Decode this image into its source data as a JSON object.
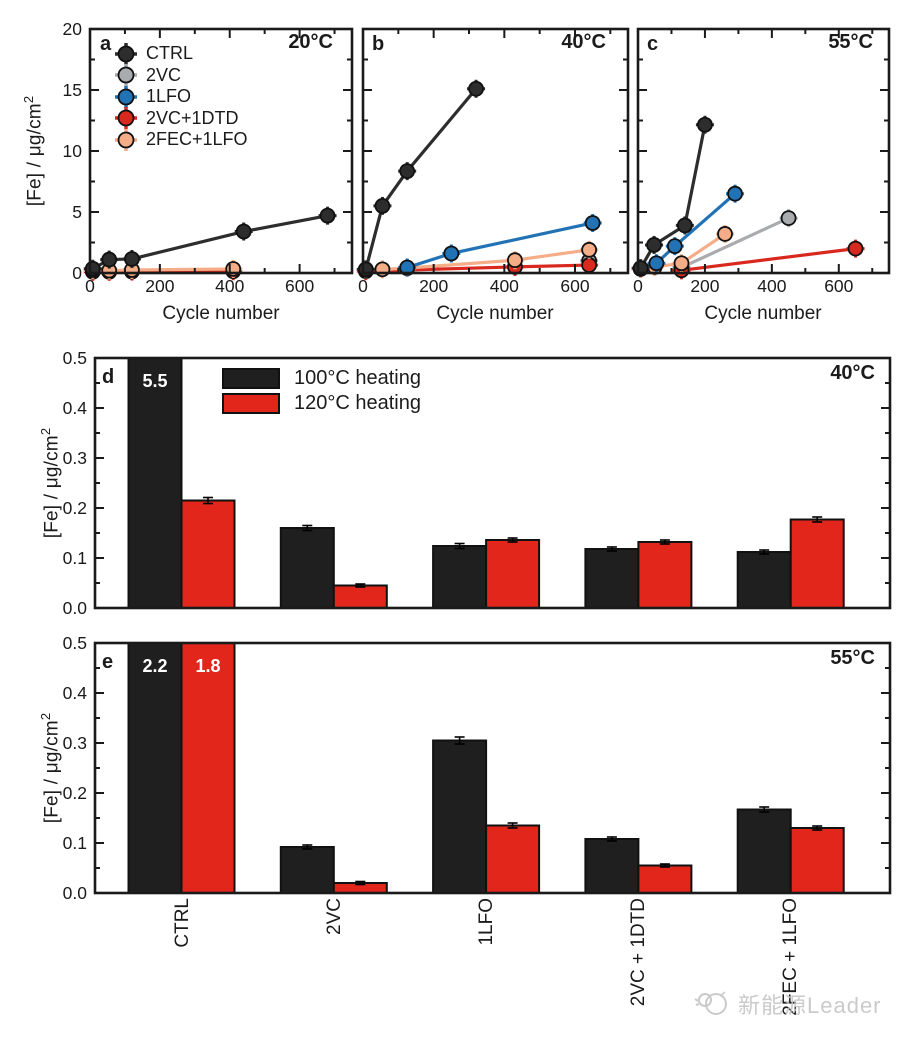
{
  "ui": {
    "ylabel_main": "[Fe] / μg/cm",
    "ylabel_sup": "2",
    "xlabel_cycles": "Cycle number"
  },
  "line_legend": [
    {
      "key": "ctrl",
      "label": "CTRL",
      "color": "#2D2D2D"
    },
    {
      "key": "2vc",
      "label": "2VC",
      "color": "#A9ABAE"
    },
    {
      "key": "1lfo",
      "label": "1LFO",
      "color": "#2173B5"
    },
    {
      "key": "2vc1dtd",
      "label": "2VC+1DTD",
      "color": "#D9291F"
    },
    {
      "key": "2fec1lfo",
      "label": "2FEC+1LFO",
      "color": "#F5AD88"
    }
  ],
  "bar_legend": [
    {
      "label": "100°C heating",
      "color": "#1F1F1F"
    },
    {
      "label": "120°C heating",
      "color": "#E2261C"
    }
  ],
  "watermark": {
    "text": "新能源Leader"
  },
  "chart_data": [
    {
      "id": "a",
      "type": "scatter",
      "panel_label": "a",
      "title": "20°C",
      "xlabel": "Cycle number",
      "ylabel": "[Fe] / μg/cm2",
      "xlim": [
        0,
        750
      ],
      "ylim": [
        0,
        20
      ],
      "xticks": [
        0,
        200,
        400,
        600
      ],
      "xminor": [
        100,
        300,
        500,
        700
      ],
      "yticks": [
        0,
        5,
        10,
        15,
        20
      ],
      "yminor": [
        2.5,
        7.5,
        12.5,
        17.5
      ],
      "legend_position": "upper-left",
      "series": [
        {
          "name": "2VC+1DTD",
          "color": "#D9291F",
          "points": [
            [
              8,
              0.1
            ],
            [
              55,
              0.1
            ],
            [
              120,
              0.12
            ],
            [
              410,
              0.15
            ]
          ]
        },
        {
          "name": "2FEC+1LFO",
          "color": "#F5AD88",
          "points": [
            [
              8,
              0.22
            ],
            [
              55,
              0.2
            ],
            [
              120,
              0.25
            ],
            [
              410,
              0.33
            ]
          ]
        },
        {
          "name": "CTRL",
          "color": "#2D2D2D",
          "points": [
            [
              8,
              0.35
            ],
            [
              55,
              1.1
            ],
            [
              120,
              1.15
            ],
            [
              440,
              3.4
            ],
            [
              680,
              4.7
            ]
          ]
        }
      ]
    },
    {
      "id": "b",
      "type": "scatter",
      "panel_label": "b",
      "title": "40°C",
      "xlabel": "Cycle number",
      "ylabel": "[Fe] / μg/cm2",
      "xlim": [
        0,
        750
      ],
      "ylim": [
        0,
        20
      ],
      "xticks": [
        0,
        200,
        400,
        600
      ],
      "xminor": [
        100,
        300,
        500,
        700
      ],
      "yticks": [
        0,
        5,
        10,
        15,
        20
      ],
      "yminor": [
        2.5,
        7.5,
        12.5,
        17.5
      ],
      "series": [
        {
          "name": "2VC",
          "color": "#A9ABAE",
          "points": [
            [
              640,
              1.0
            ]
          ]
        },
        {
          "name": "2VC+1DTD",
          "color": "#D9291F",
          "points": [
            [
              8,
              0.15
            ],
            [
              430,
              0.5
            ],
            [
              640,
              0.65
            ]
          ]
        },
        {
          "name": "2FEC+1LFO",
          "color": "#F5AD88",
          "points": [
            [
              8,
              0.28
            ],
            [
              55,
              0.3
            ],
            [
              125,
              0.4
            ],
            [
              430,
              1.05
            ],
            [
              640,
              1.9
            ]
          ]
        },
        {
          "name": "1LFO",
          "color": "#2173B5",
          "points": [
            [
              125,
              0.45
            ],
            [
              250,
              1.6
            ],
            [
              650,
              4.1
            ]
          ]
        },
        {
          "name": "CTRL",
          "color": "#2D2D2D",
          "points": [
            [
              8,
              0.3
            ],
            [
              55,
              5.5
            ],
            [
              125,
              8.35
            ],
            [
              320,
              15.1
            ]
          ]
        }
      ]
    },
    {
      "id": "c",
      "type": "scatter",
      "panel_label": "c",
      "title": "55°C",
      "xlabel": "Cycle number",
      "ylabel": "[Fe] / μg/cm2",
      "xlim": [
        0,
        750
      ],
      "ylim": [
        0,
        20
      ],
      "xticks": [
        0,
        200,
        400,
        600
      ],
      "xminor": [
        100,
        300,
        500,
        700
      ],
      "yticks": [
        0,
        5,
        10,
        15,
        20
      ],
      "yminor": [
        2.5,
        7.5,
        12.5,
        17.5
      ],
      "series": [
        {
          "name": "2VC",
          "color": "#A9ABAE",
          "points": [
            [
              130,
              0.45
            ],
            [
              450,
              4.5
            ]
          ]
        },
        {
          "name": "2VC+1DTD",
          "color": "#D9291F",
          "points": [
            [
              130,
              0.22
            ],
            [
              650,
              2.0
            ]
          ]
        },
        {
          "name": "2FEC+1LFO",
          "color": "#F5AD88",
          "points": [
            [
              8,
              0.33
            ],
            [
              50,
              0.5
            ],
            [
              130,
              0.8
            ],
            [
              260,
              3.2
            ]
          ]
        },
        {
          "name": "1LFO",
          "color": "#2173B5",
          "points": [
            [
              55,
              0.8
            ],
            [
              110,
              2.2
            ],
            [
              290,
              6.5
            ]
          ]
        },
        {
          "name": "CTRL",
          "color": "#2D2D2D",
          "points": [
            [
              8,
              0.4
            ],
            [
              48,
              2.3
            ],
            [
              140,
              3.9
            ],
            [
              200,
              12.15
            ]
          ]
        }
      ]
    },
    {
      "id": "d",
      "type": "bar",
      "panel_label": "d",
      "title": "40°C",
      "ylabel": "[Fe] / μg/cm2",
      "ylim": [
        0,
        0.5
      ],
      "yticks": [
        0.0,
        0.1,
        0.2,
        0.3,
        0.4,
        0.5
      ],
      "yminor": [
        0.05,
        0.15,
        0.25,
        0.35,
        0.45
      ],
      "categories": [
        "CTRL",
        "2VC",
        "1LFO",
        "2VC + 1DTD",
        "2FEC + 1LFO"
      ],
      "series": [
        {
          "name": "100°C heating",
          "color": "#1F1F1F",
          "values": [
            5.5,
            0.16,
            0.124,
            0.118,
            0.112
          ],
          "clipped": [
            true,
            false,
            false,
            false,
            false
          ],
          "err": [
            0,
            0.005,
            0.005,
            0.004,
            0.004
          ]
        },
        {
          "name": "120°C heating",
          "color": "#E2261C",
          "values": [
            0.215,
            0.045,
            0.136,
            0.132,
            0.177
          ],
          "clipped": [
            false,
            false,
            false,
            false,
            false
          ],
          "err": [
            0.006,
            0.003,
            0.004,
            0.004,
            0.005
          ]
        }
      ],
      "annotations": [
        {
          "text": "5.5",
          "series": 0,
          "category": 0
        }
      ]
    },
    {
      "id": "e",
      "type": "bar",
      "panel_label": "e",
      "title": "55°C",
      "ylabel": "[Fe] / μg/cm2",
      "ylim": [
        0,
        0.5
      ],
      "yticks": [
        0.0,
        0.1,
        0.2,
        0.3,
        0.4,
        0.5
      ],
      "yminor": [
        0.05,
        0.15,
        0.25,
        0.35,
        0.45
      ],
      "categories": [
        "CTRL",
        "2VC",
        "1LFO",
        "2VC + 1DTD",
        "2FEC + 1LFO"
      ],
      "series": [
        {
          "name": "100°C heating",
          "color": "#1F1F1F",
          "values": [
            2.2,
            0.092,
            0.305,
            0.108,
            0.167
          ],
          "clipped": [
            true,
            false,
            false,
            false,
            false
          ],
          "err": [
            0,
            0.004,
            0.007,
            0.004,
            0.005
          ]
        },
        {
          "name": "120°C heating",
          "color": "#E2261C",
          "values": [
            1.8,
            0.02,
            0.135,
            0.055,
            0.13
          ],
          "clipped": [
            true,
            false,
            false,
            false,
            false
          ],
          "err": [
            0,
            0.003,
            0.005,
            0.003,
            0.004
          ]
        }
      ],
      "annotations": [
        {
          "text": "2.2",
          "series": 0,
          "category": 0
        },
        {
          "text": "1.8",
          "series": 1,
          "category": 0
        }
      ]
    }
  ]
}
